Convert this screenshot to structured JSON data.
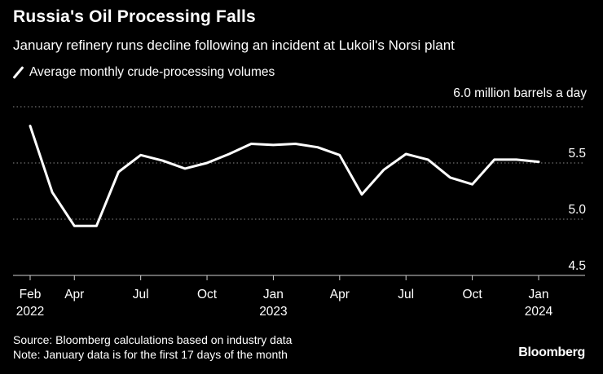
{
  "chart_data": {
    "type": "line",
    "title": "Russia's Oil Processing Falls",
    "subtitle": "January refinery runs decline following an incident at Lukoil's Norsi plant",
    "legend": [
      "Average monthly crude-processing volumes"
    ],
    "unit_label": "6.0 million barrels a day",
    "ylim": [
      4.5,
      6.0
    ],
    "yticks": [
      {
        "value": 5.5,
        "label": "5.5"
      },
      {
        "value": 5.0,
        "label": "5.0"
      },
      {
        "value": 4.5,
        "label": "4.5"
      }
    ],
    "xticks": [
      {
        "index": 0,
        "label": "Feb",
        "year": "2022"
      },
      {
        "index": 2,
        "label": "Apr",
        "year": ""
      },
      {
        "index": 5,
        "label": "Jul",
        "year": ""
      },
      {
        "index": 8,
        "label": "Oct",
        "year": ""
      },
      {
        "index": 11,
        "label": "Jan",
        "year": "2023"
      },
      {
        "index": 14,
        "label": "Apr",
        "year": ""
      },
      {
        "index": 17,
        "label": "Jul",
        "year": ""
      },
      {
        "index": 20,
        "label": "Oct",
        "year": ""
      },
      {
        "index": 23,
        "label": "Jan",
        "year": "2024"
      }
    ],
    "series": [
      {
        "name": "Average monthly crude-processing volumes",
        "x": [
          "2022-02",
          "2022-03",
          "2022-04",
          "2022-05",
          "2022-06",
          "2022-07",
          "2022-08",
          "2022-09",
          "2022-10",
          "2022-11",
          "2022-12",
          "2023-01",
          "2023-02",
          "2023-03",
          "2023-04",
          "2023-05",
          "2023-06",
          "2023-07",
          "2023-08",
          "2023-09",
          "2023-10",
          "2023-11",
          "2023-12",
          "2024-01"
        ],
        "values": [
          5.83,
          5.24,
          4.94,
          4.94,
          5.42,
          5.57,
          5.52,
          5.45,
          5.5,
          5.58,
          5.67,
          5.66,
          5.67,
          5.64,
          5.57,
          5.22,
          5.44,
          5.58,
          5.53,
          5.37,
          5.31,
          5.53,
          5.53,
          5.51
        ]
      }
    ]
  },
  "footer": {
    "source": "Source: Bloomberg calculations based on industry data",
    "note": "Note: January data is for the first 17 days of the month",
    "brand": "Bloomberg"
  },
  "colors": {
    "background": "#000000",
    "line": "#ffffff",
    "grid": "#8a8a8a"
  }
}
